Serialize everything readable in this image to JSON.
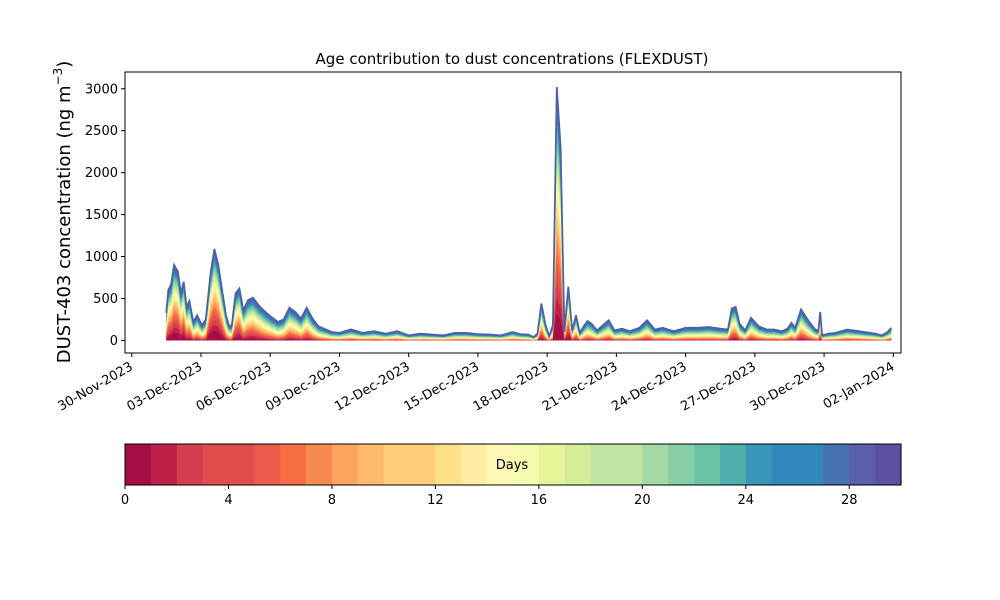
{
  "chart_data": {
    "type": "area",
    "title": "Age contribution to dust concentrations (FLEXDUST)",
    "ylabel_main": "DUST-403 concentration (ng m",
    "ylabel_sup": "−3",
    "ylabel_end": ")",
    "xlabel": "",
    "xlim": [
      "2023-11-29T17:00",
      "2024-01-02T08:00"
    ],
    "ylim": [
      -150,
      3200
    ],
    "grid": false,
    "x_ticks": [
      "30-Nov-2023",
      "03-Dec-2023",
      "06-Dec-2023",
      "09-Dec-2023",
      "12-Dec-2023",
      "15-Dec-2023",
      "18-Dec-2023",
      "21-Dec-2023",
      "24-Dec-2023",
      "27-Dec-2023",
      "30-Dec-2023",
      "02-Jan-2024"
    ],
    "y_ticks": [
      0,
      500,
      1000,
      1500,
      2000,
      2500,
      3000
    ],
    "series_description": "Stacked contributions by particle age (0–30 days); top line is the total concentration",
    "total": {
      "x": [
        "2023-12-01T12:00",
        "2023-12-01T14:00",
        "2023-12-01T17:00",
        "2023-12-01T20:00",
        "2023-12-02T00:00",
        "2023-12-02T03:00",
        "2023-12-02T06:00",
        "2023-12-02T09:00",
        "2023-12-02T12:00",
        "2023-12-02T16:00",
        "2023-12-02T20:00",
        "2023-12-03T01:00",
        "2023-12-03T05:00",
        "2023-12-03T10:00",
        "2023-12-03T14:00",
        "2023-12-03T18:00",
        "2023-12-03T22:00",
        "2023-12-04T02:00",
        "2023-12-04T05:00",
        "2023-12-04T08:00",
        "2023-12-04T12:00",
        "2023-12-04T16:00",
        "2023-12-04T20:00",
        "2023-12-05T01:00",
        "2023-12-05T06:00",
        "2023-12-05T12:00",
        "2023-12-05T18:00",
        "2023-12-06T01:00",
        "2023-12-06T08:00",
        "2023-12-06T14:00",
        "2023-12-06T20:00",
        "2023-12-07T02:00",
        "2023-12-07T08:00",
        "2023-12-07T14:00",
        "2023-12-07T20:00",
        "2023-12-08T02:00",
        "2023-12-08T08:00",
        "2023-12-08T16:00",
        "2023-12-09T00:00",
        "2023-12-09T12:00",
        "2023-12-10T00:00",
        "2023-12-10T12:00",
        "2023-12-11T00:00",
        "2023-12-11T12:00",
        "2023-12-12T00:00",
        "2023-12-12T12:00",
        "2023-12-13T00:00",
        "2023-12-13T12:00",
        "2023-12-14T00:00",
        "2023-12-14T12:00",
        "2023-12-15T00:00",
        "2023-12-15T12:00",
        "2023-12-16T00:00",
        "2023-12-16T12:00",
        "2023-12-16T20:00",
        "2023-12-17T04:00",
        "2023-12-17T10:00",
        "2023-12-17T14:00",
        "2023-12-17T18:00",
        "2023-12-17T22:00",
        "2023-12-18T02:00",
        "2023-12-18T06:00",
        "2023-12-18T10:00",
        "2023-12-18T14:00",
        "2023-12-18T18:00",
        "2023-12-18T22:00",
        "2023-12-19T02:00",
        "2023-12-19T06:00",
        "2023-12-19T10:00",
        "2023-12-19T14:00",
        "2023-12-19T18:00",
        "2023-12-19T22:00",
        "2023-12-20T04:00",
        "2023-12-20T10:00",
        "2023-12-20T16:00",
        "2023-12-20T22:00",
        "2023-12-21T06:00",
        "2023-12-21T14:00",
        "2023-12-22T00:00",
        "2023-12-22T08:00",
        "2023-12-22T16:00",
        "2023-12-23T00:00",
        "2023-12-23T12:00",
        "2023-12-24T00:00",
        "2023-12-24T12:00",
        "2023-12-25T00:00",
        "2023-12-25T12:00",
        "2023-12-25T20:00",
        "2023-12-26T00:00",
        "2023-12-26T04:00",
        "2023-12-26T08:00",
        "2023-12-26T14:00",
        "2023-12-26T20:00",
        "2023-12-27T04:00",
        "2023-12-27T12:00",
        "2023-12-27T20:00",
        "2023-12-28T04:00",
        "2023-12-28T10:00",
        "2023-12-28T14:00",
        "2023-12-28T18:00",
        "2023-12-29T00:00",
        "2023-12-29T08:00",
        "2023-12-29T14:00",
        "2023-12-29T18:00",
        "2023-12-29T20:00",
        "2023-12-29T22:00",
        "2023-12-30T04:00",
        "2023-12-30T12:00",
        "2023-12-31T00:00",
        "2023-12-31T12:00",
        "2024-01-01T00:00",
        "2024-01-01T06:00",
        "2024-01-01T12:00",
        "2024-01-01T18:00",
        "2024-01-01T22:00"
      ],
      "y": [
        330,
        600,
        670,
        900,
        820,
        560,
        700,
        400,
        470,
        220,
        300,
        180,
        250,
        800,
        1090,
        900,
        600,
        300,
        180,
        170,
        560,
        620,
        360,
        480,
        510,
        420,
        350,
        280,
        220,
        250,
        390,
        340,
        260,
        390,
        260,
        170,
        140,
        100,
        90,
        130,
        90,
        110,
        80,
        110,
        60,
        80,
        70,
        60,
        90,
        90,
        75,
        70,
        60,
        100,
        75,
        70,
        40,
        80,
        440,
        200,
        50,
        180,
        3020,
        2300,
        100,
        640,
        120,
        300,
        90,
        170,
        230,
        200,
        120,
        180,
        240,
        120,
        140,
        110,
        150,
        240,
        130,
        150,
        110,
        150,
        150,
        160,
        140,
        130,
        380,
        400,
        200,
        120,
        270,
        170,
        130,
        130,
        110,
        140,
        210,
        150,
        370,
        230,
        140,
        110,
        340,
        60,
        80,
        90,
        130,
        110,
        90,
        80,
        60,
        100,
        150
      ]
    },
    "age_colorbar": {
      "label": "Days",
      "ticks": [
        0,
        4,
        8,
        12,
        16,
        20,
        24,
        28
      ],
      "min": 0,
      "max": 30,
      "colors": [
        "#a50f45",
        "#bf2047",
        "#d53e4f",
        "#e04d4b",
        "#ec5c4b",
        "#f46d43",
        "#f78a51",
        "#fca55f",
        "#fdb96c",
        "#fdcd7a",
        "#fee08b",
        "#feeda2",
        "#fff9b7",
        "#f6fbb2",
        "#e6f598",
        "#d4ee98",
        "#bfe5a0",
        "#a3d9a4",
        "#86cea4",
        "#6bc3a5",
        "#52aeac",
        "#3a96b6",
        "#3288bd",
        "#4371b2",
        "#5a5eab",
        "#5e4fa2"
      ]
    }
  }
}
